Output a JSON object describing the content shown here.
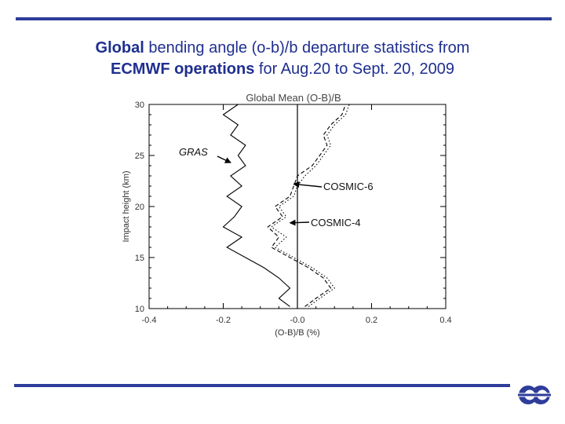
{
  "slide": {
    "title_bold_1": "Global",
    "title_text_1": " bending angle (o-b)/b departure statistics from",
    "title_bold_2": "ECMWF operations",
    "title_text_2": " for Aug.20 to Sept. 20, 2009"
  },
  "logo": {
    "name": "ecmwf-logo",
    "color": "#2e3d9a"
  },
  "accent_color": "#2e3d9a",
  "chart_data": {
    "type": "line",
    "title": "Global Mean (O-B)/B",
    "xlabel": "(O-B)/B (%)",
    "ylabel": "Impact height (km)",
    "xlim": [
      -0.4,
      0.4
    ],
    "ylim": [
      10,
      30
    ],
    "x_ticks": [
      -0.4,
      -0.2,
      0.0,
      0.2,
      0.4
    ],
    "x_tick_labels": [
      "-0.4",
      "-0.2",
      "-0.0",
      "0.2",
      "0.4"
    ],
    "y_ticks": [
      10,
      15,
      20,
      25,
      30
    ],
    "y_tick_labels": [
      "10",
      "15",
      "20",
      "25",
      "30"
    ],
    "grid": false,
    "reference_line_x": 0.0,
    "series": [
      {
        "name": "GRAS",
        "style": "solid",
        "points": [
          [
            -0.02,
            10.2
          ],
          [
            -0.05,
            11.0
          ],
          [
            -0.02,
            12.0
          ],
          [
            -0.05,
            13.0
          ],
          [
            -0.09,
            14.0
          ],
          [
            -0.14,
            15.0
          ],
          [
            -0.19,
            16.0
          ],
          [
            -0.15,
            17.0
          ],
          [
            -0.2,
            18.0
          ],
          [
            -0.17,
            19.0
          ],
          [
            -0.15,
            20.0
          ],
          [
            -0.19,
            21.0
          ],
          [
            -0.15,
            22.0
          ],
          [
            -0.18,
            23.0
          ],
          [
            -0.14,
            24.0
          ],
          [
            -0.16,
            25.0
          ],
          [
            -0.14,
            26.0
          ],
          [
            -0.18,
            27.0
          ],
          [
            -0.16,
            28.0
          ],
          [
            -0.2,
            29.0
          ],
          [
            -0.16,
            30.0
          ]
        ]
      },
      {
        "name": "COSMIC-6",
        "style": "dashed",
        "points": [
          [
            0.02,
            10.2
          ],
          [
            0.05,
            11.0
          ],
          [
            0.09,
            12.0
          ],
          [
            0.07,
            13.0
          ],
          [
            0.03,
            14.0
          ],
          [
            -0.02,
            15.0
          ],
          [
            -0.07,
            16.0
          ],
          [
            -0.05,
            17.0
          ],
          [
            -0.08,
            18.0
          ],
          [
            -0.04,
            19.0
          ],
          [
            -0.06,
            20.0
          ],
          [
            -0.02,
            21.0
          ],
          [
            -0.01,
            22.0
          ],
          [
            0.0,
            23.0
          ],
          [
            0.04,
            24.0
          ],
          [
            0.06,
            25.0
          ],
          [
            0.08,
            26.0
          ],
          [
            0.07,
            27.0
          ],
          [
            0.09,
            28.0
          ],
          [
            0.12,
            29.0
          ],
          [
            0.13,
            30.0
          ]
        ]
      },
      {
        "name": "COSMIC-4",
        "style": "dotted",
        "points": [
          [
            0.03,
            10.2
          ],
          [
            0.06,
            11.0
          ],
          [
            0.1,
            12.0
          ],
          [
            0.08,
            13.0
          ],
          [
            0.04,
            14.0
          ],
          [
            -0.01,
            15.0
          ],
          [
            -0.06,
            16.0
          ],
          [
            -0.03,
            17.0
          ],
          [
            -0.07,
            18.0
          ],
          [
            -0.03,
            19.0
          ],
          [
            -0.05,
            20.0
          ],
          [
            -0.01,
            21.0
          ],
          [
            0.0,
            22.0
          ],
          [
            0.02,
            23.0
          ],
          [
            0.05,
            24.0
          ],
          [
            0.07,
            25.0
          ],
          [
            0.09,
            26.0
          ],
          [
            0.08,
            27.0
          ],
          [
            0.1,
            28.0
          ],
          [
            0.13,
            29.0
          ],
          [
            0.14,
            30.0
          ]
        ]
      }
    ],
    "annotations": [
      {
        "text": "GRAS",
        "series": "GRAS",
        "arrow_to": [
          -0.18,
          24.3
        ]
      },
      {
        "text": "COSMIC-6",
        "series": "COSMIC-6",
        "arrow_to": [
          -0.01,
          22.2
        ]
      },
      {
        "text": "COSMIC-4",
        "series": "COSMIC-4",
        "arrow_to": [
          -0.02,
          18.4
        ]
      }
    ]
  }
}
